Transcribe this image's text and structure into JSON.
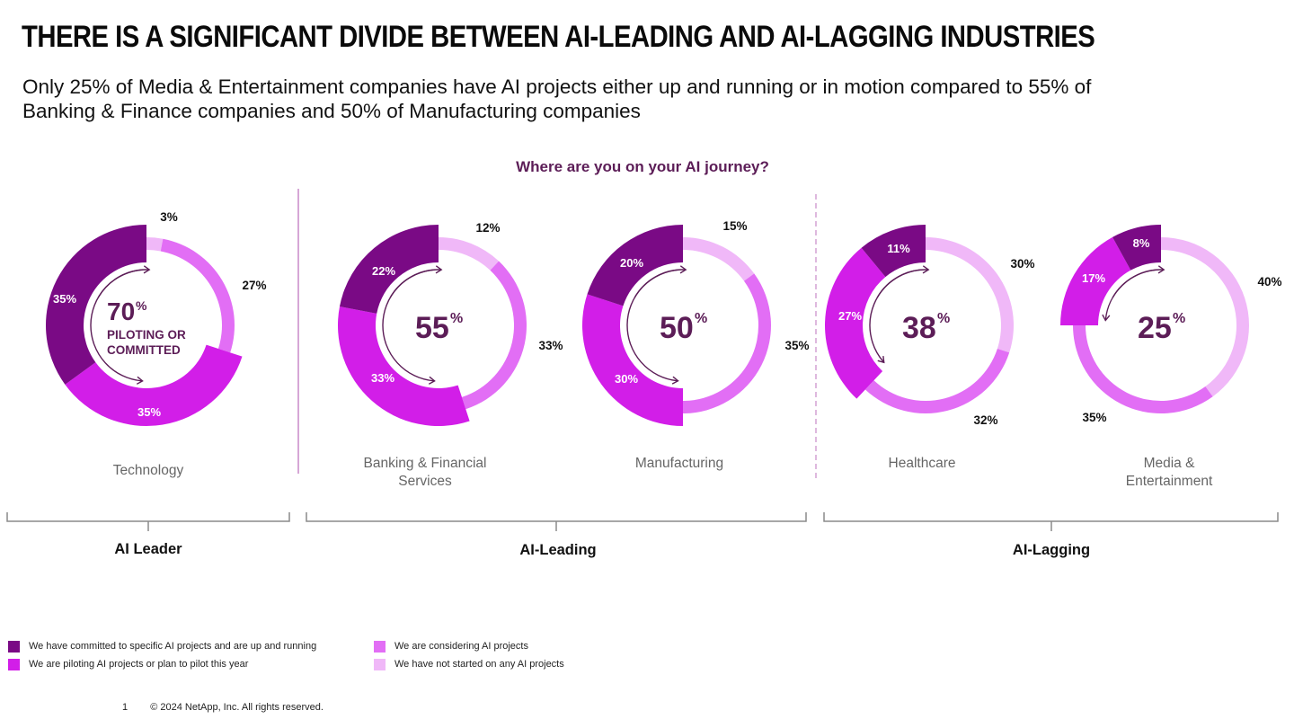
{
  "title": "THERE IS A SIGNIFICANT DIVIDE BETWEEN AI-LEADING AND AI-LAGGING INDUSTRIES",
  "subtitle": "Only 25% of Media & Entertainment companies have AI projects either up and running or in motion compared to 55% of Banking & Finance companies and 50% of Manufacturing companies",
  "footer": {
    "page_number": "1",
    "copyright": "© 2024 NetApp, Inc. All rights reserved."
  },
  "colors": {
    "committed": "#7a0a85",
    "piloting": "#d21ee8",
    "considering": "#e26ef5",
    "not_started": "#f0b8f8",
    "accent_text": "#5c1d57",
    "divider": "#c98ac9"
  },
  "chart_data": {
    "type": "pie",
    "variant": "donut",
    "title": "Where are you on your AI journey?",
    "legend": [
      {
        "key": "committed",
        "label": "We have committed to specific AI projects and are up and running"
      },
      {
        "key": "piloting",
        "label": "We are piloting AI projects or plan to pilot this year"
      },
      {
        "key": "considering",
        "label": "We are considering AI projects"
      },
      {
        "key": "not_started",
        "label": "We have not started on any AI projects"
      }
    ],
    "legend_position": "bottom-left",
    "charts": [
      {
        "industry": "Technology",
        "group": "AI Leader",
        "center_value": "70",
        "center_suffix": "%",
        "center_caption_1": "PILOTING OR",
        "center_caption_2": "COMMITTED",
        "values": {
          "committed": 35,
          "piloting": 35,
          "considering": 27,
          "not_started": 3
        }
      },
      {
        "industry": "Banking & Financial Services",
        "group": "AI-Leading",
        "center_value": "55",
        "center_suffix": "%",
        "values": {
          "committed": 22,
          "piloting": 33,
          "considering": 33,
          "not_started": 12
        }
      },
      {
        "industry": "Manufacturing",
        "group": "AI-Leading",
        "center_value": "50",
        "center_suffix": "%",
        "values": {
          "committed": 20,
          "piloting": 30,
          "considering": 35,
          "not_started": 15
        }
      },
      {
        "industry": "Healthcare",
        "group": "AI-Lagging",
        "center_value": "38",
        "center_suffix": "%",
        "values": {
          "committed": 11,
          "piloting": 27,
          "considering": 32,
          "not_started": 30
        }
      },
      {
        "industry": "Media & Entertainment",
        "group": "AI-Lagging",
        "center_value": "25",
        "center_suffix": "%",
        "values": {
          "committed": 8,
          "piloting": 17,
          "considering": 35,
          "not_started": 40
        }
      }
    ],
    "groups": [
      "AI Leader",
      "AI-Leading",
      "AI-Lagging"
    ]
  },
  "industry_labels": {
    "technology": "Technology",
    "banking_1": "Banking & Financial",
    "banking_2": "Services",
    "manufacturing": "Manufacturing",
    "healthcare": "Healthcare",
    "media_1": "Media &",
    "media_2": "Entertainment"
  }
}
